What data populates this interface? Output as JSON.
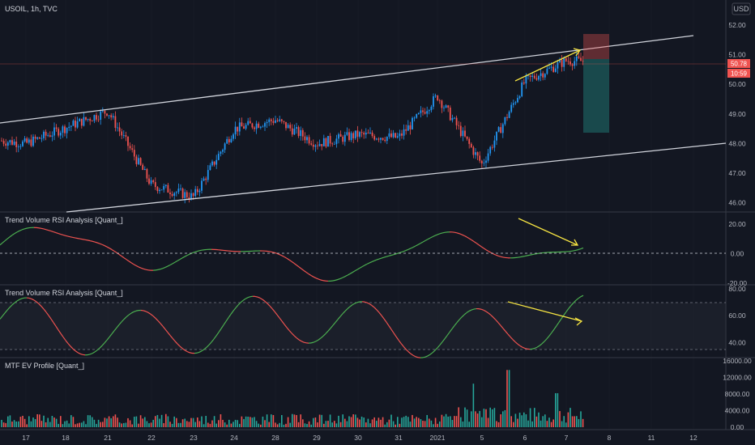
{
  "header": {
    "symbol": "USOIL, 1h, TVC",
    "currency": "USD"
  },
  "price_badges": [
    "50.78",
    "10:59"
  ],
  "colors": {
    "up": "#26a69a",
    "down": "#ef5350",
    "bg": "#131722",
    "grid": "#2a2e39",
    "channel": "#d1d4dc",
    "arrow": "#f5e342",
    "osc_up": "#4caf50",
    "osc_down": "#ef5350",
    "candle_up": "#2196f3",
    "candle_down": "#ef5350"
  },
  "chart_data": [
    {
      "type": "candlestick",
      "title": "USOIL, 1h, TVC",
      "x_ticks": [
        "17",
        "18",
        "21",
        "22",
        "23",
        "24",
        "28",
        "29",
        "30",
        "31",
        "2021",
        "5",
        "6",
        "7",
        "8",
        "11",
        "12"
      ],
      "y_ticks": [
        "52.00",
        "51.00",
        "50.00",
        "49.00",
        "48.00",
        "47.00",
        "46.00"
      ],
      "ylim": [
        45.8,
        52.3
      ],
      "key_points": [
        {
          "x": "17",
          "close": 48.0
        },
        {
          "x": "21",
          "close": 49.1
        },
        {
          "x": "22",
          "close": 46.6
        },
        {
          "x": "23",
          "close": 46.2
        },
        {
          "x": "24",
          "close": 48.5
        },
        {
          "x": "28",
          "close": 48.8
        },
        {
          "x": "29",
          "close": 48.0
        },
        {
          "x": "30",
          "close": 48.3
        },
        {
          "x": "31",
          "close": 48.2
        },
        {
          "x": "2021",
          "close": 49.6
        },
        {
          "x": "5",
          "close": 47.3
        },
        {
          "x": "6",
          "close": 50.1
        },
        {
          "x": "7",
          "close": 50.8
        }
      ],
      "last_price": 50.78
    },
    {
      "type": "line",
      "title": "Trend Volume RSI Analysis [Quant_]",
      "y_ticks": [
        "20.00",
        "0.00",
        "-20.00"
      ],
      "ylim": [
        -20,
        25
      ]
    },
    {
      "type": "line",
      "title": "Trend Volume RSI Analysis [Quant_]",
      "y_ticks": [
        "80.00",
        "60.00",
        "40.00"
      ],
      "ylim": [
        30,
        80
      ]
    },
    {
      "type": "bar",
      "title": "MTF EV Profile [Quant_]",
      "y_ticks": [
        "16000.00",
        "12000.00",
        "8000.00",
        "4000.00",
        "0.00"
      ],
      "ylim": [
        0,
        16000
      ]
    }
  ]
}
